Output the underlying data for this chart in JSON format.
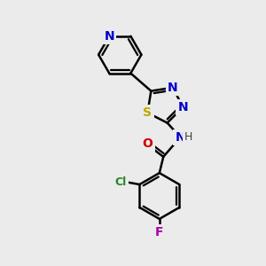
{
  "bg_color": "#ebebeb",
  "bond_color": "#000000",
  "bond_width": 1.8,
  "atom_labels": {
    "N_pyridine": {
      "text": "N",
      "color": "#0000cc",
      "fontsize": 10,
      "fontweight": "bold"
    },
    "N_td1": {
      "text": "N",
      "color": "#0000cc",
      "fontsize": 10,
      "fontweight": "bold"
    },
    "N_td2": {
      "text": "N",
      "color": "#0000cc",
      "fontsize": 10,
      "fontweight": "bold"
    },
    "S": {
      "text": "S",
      "color": "#bbaa00",
      "fontsize": 10,
      "fontweight": "bold"
    },
    "O": {
      "text": "O",
      "color": "#cc0000",
      "fontsize": 10,
      "fontweight": "bold"
    },
    "NH": {
      "text": "N",
      "color": "#0000cc",
      "fontsize": 10,
      "fontweight": "bold"
    },
    "H": {
      "text": "H",
      "color": "#444444",
      "fontsize": 9,
      "fontweight": "normal"
    },
    "Cl": {
      "text": "Cl",
      "color": "#228822",
      "fontsize": 9,
      "fontweight": "bold"
    },
    "F": {
      "text": "F",
      "color": "#aa00aa",
      "fontsize": 10,
      "fontweight": "bold"
    }
  },
  "scale": 1.0
}
